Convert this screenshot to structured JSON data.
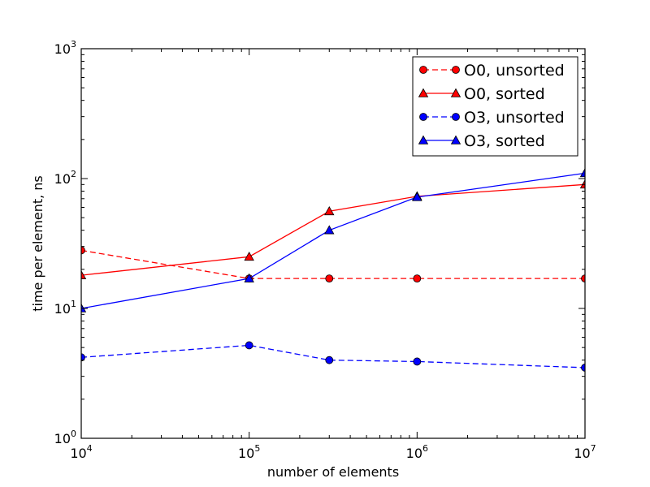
{
  "chart_data": {
    "type": "line",
    "title": "",
    "xlabel": "number of elements",
    "ylabel": "time per element, ns",
    "xscale": "log",
    "yscale": "log",
    "xlim": [
      10000,
      10000000
    ],
    "ylim": [
      1,
      1000
    ],
    "grid": false,
    "legend_position": "top-right",
    "x_ticks": [
      {
        "value": 10000,
        "base": "10",
        "exp": "4"
      },
      {
        "value": 100000,
        "base": "10",
        "exp": "5"
      },
      {
        "value": 1000000,
        "base": "10",
        "exp": "6"
      },
      {
        "value": 10000000,
        "base": "10",
        "exp": "7"
      }
    ],
    "y_ticks": [
      {
        "value": 1,
        "base": "10",
        "exp": "0"
      },
      {
        "value": 10,
        "base": "10",
        "exp": "1"
      },
      {
        "value": 100,
        "base": "10",
        "exp": "2"
      },
      {
        "value": 1000,
        "base": "10",
        "exp": "3"
      }
    ],
    "x": [
      10000,
      100000,
      300000,
      1000000,
      10000000
    ],
    "series": [
      {
        "name": "O0, unsorted",
        "color": "#ff0000",
        "dash": true,
        "marker": "circle",
        "values": [
          28,
          17,
          17,
          17,
          17
        ]
      },
      {
        "name": "O0, sorted",
        "color": "#ff0000",
        "dash": false,
        "marker": "triangle",
        "values": [
          18,
          25,
          56,
          73,
          90
        ]
      },
      {
        "name": "O3, unsorted",
        "color": "#0000ff",
        "dash": true,
        "marker": "circle",
        "values": [
          4.2,
          5.2,
          4.0,
          3.9,
          3.5
        ]
      },
      {
        "name": "O3, sorted",
        "color": "#0000ff",
        "dash": false,
        "marker": "triangle",
        "values": [
          10,
          17,
          40,
          72,
          110
        ]
      }
    ]
  }
}
